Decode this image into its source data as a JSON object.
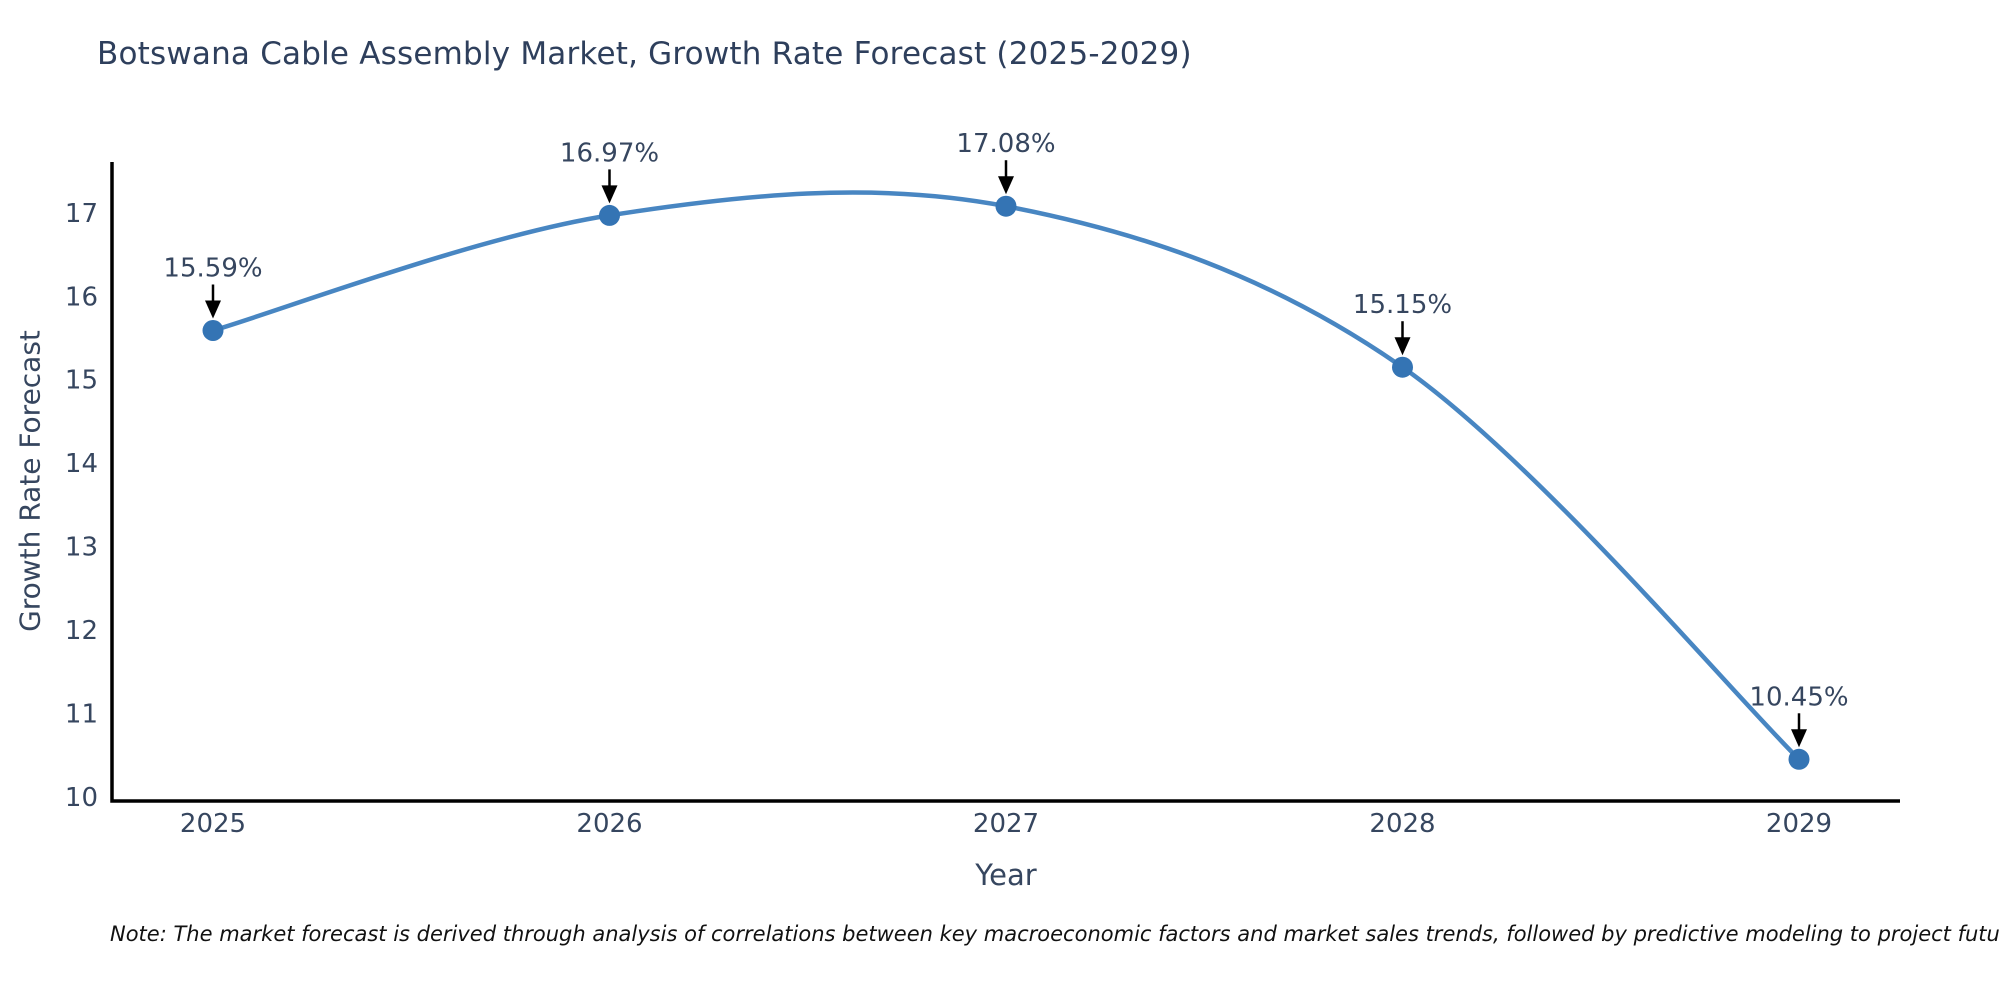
{
  "title": "Botswana Cable Assembly Market, Growth Rate Forecast (2025-2029)",
  "note": "Note: The market forecast is derived through analysis of correlations between key macroeconomic factors and market sales trends, followed by predictive modeling to project future sales",
  "chart_data": {
    "type": "line",
    "title": "Botswana Cable Assembly Market, Growth Rate Forecast (2025-2029)",
    "x": [
      2025,
      2026,
      2027,
      2028,
      2029
    ],
    "categories": [
      "2025",
      "2026",
      "2027",
      "2028",
      "2029"
    ],
    "series": [
      {
        "name": "Growth Rate Forecast",
        "values": [
          15.59,
          16.97,
          17.08,
          15.15,
          10.45
        ]
      }
    ],
    "point_labels": [
      "15.59%",
      "16.97%",
      "17.08%",
      "15.15%",
      "10.45%"
    ],
    "xlabel": "Year",
    "ylabel": "Growth Rate Forecast",
    "ylim": [
      9.95,
      17.61
    ],
    "yticks": [
      10,
      11,
      12,
      13,
      14,
      15,
      16,
      17
    ],
    "grid": false,
    "legend": "none",
    "curve": "smooth-spline",
    "colors": {
      "line": "#4886c2",
      "marker": "#3474b4",
      "axis": "#000000",
      "annotation_arrow": "#000000",
      "tick_text": "#36465f",
      "title_text": "#2e3f5c"
    }
  }
}
